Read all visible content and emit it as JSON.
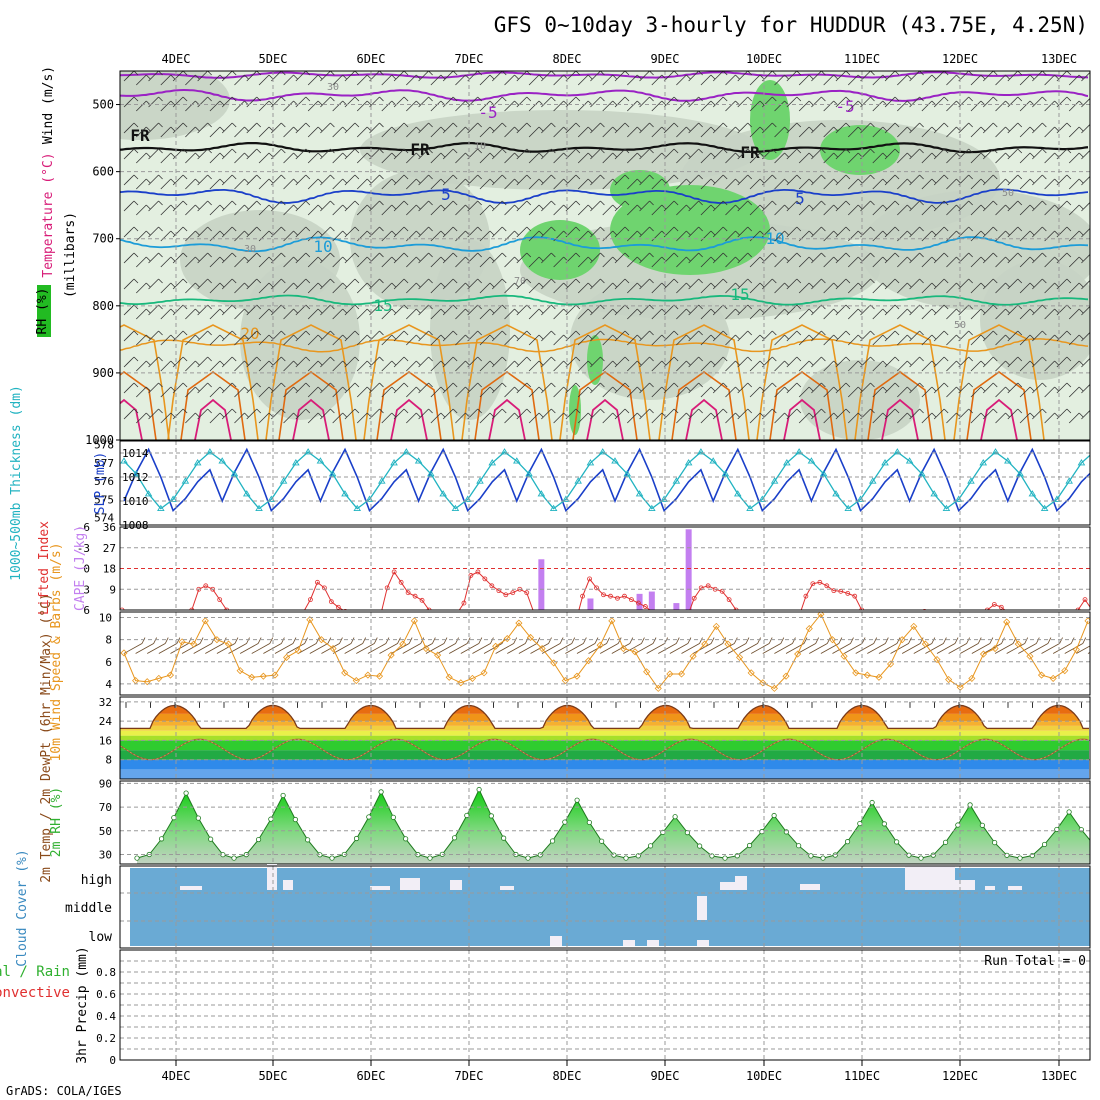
{
  "title": "GFS 0~10day 3-hourly for HUDDUR (43.75E, 4.25N)",
  "footer": "GrADS: COLA/IGES",
  "colors": {
    "rh_light": "#e3efe0",
    "rh_mid": "#c7d3c4",
    "rh_dark": "#6fd46f",
    "t_m5": "#9a22c4",
    "t_fr": "#111111",
    "t_5": "#1a3fc9",
    "t_10": "#1c9cd8",
    "t_15": "#18b87c",
    "t_20": "#e8961e",
    "t_25": "#e06a10",
    "t_30": "#d81c78",
    "slp": "#1a3fc9",
    "thickness": "#21b3c1",
    "lifted": "#e03030",
    "cape": "#c37ff0",
    "wind": "#e8961e",
    "cloud_bg": "#6aaad4",
    "cloud_fill": "#f2eef6",
    "rh2m": "#30b030"
  },
  "chart_data": [
    {
      "type": "heatmap",
      "name": "upper-air",
      "ylabel_parts": [
        "RH (%)",
        "Temperature (°C)",
        "Wind (m/s)"
      ],
      "yaxis_title": "(millibars)",
      "x": [
        "4DEC",
        "5DEC",
        "6DEC",
        "7DEC",
        "8DEC",
        "9DEC",
        "10DEC",
        "11DEC",
        "12DEC",
        "13DEC"
      ],
      "yticks": [
        500,
        600,
        700,
        800,
        900,
        1000
      ],
      "ylim": [
        1000,
        450
      ],
      "contour_labels": [
        {
          "text": "-5",
          "color": "t_m5"
        },
        {
          "text": "-5",
          "color": "t_m5"
        },
        {
          "text": "FR",
          "color": "t_fr"
        },
        {
          "text": "FR",
          "color": "t_fr"
        },
        {
          "text": "FR",
          "color": "t_fr"
        },
        {
          "text": "5",
          "color": "t_5"
        },
        {
          "text": "5",
          "color": "t_5"
        },
        {
          "text": "10",
          "color": "t_10"
        },
        {
          "text": "10",
          "color": "t_10"
        },
        {
          "text": "15",
          "color": "t_15"
        },
        {
          "text": "15",
          "color": "t_15"
        },
        {
          "text": "20",
          "color": "t_20"
        },
        {
          "text": "30",
          "color": "rh"
        },
        {
          "text": "30",
          "color": "rh"
        },
        {
          "text": "50",
          "color": "rh"
        },
        {
          "text": "50",
          "color": "rh"
        },
        {
          "text": "70",
          "color": "rh"
        },
        {
          "text": "10",
          "color": "rh"
        }
      ]
    },
    {
      "type": "line",
      "name": "slp-thickness",
      "ylabel_left": "1000~500mb Thickness (dm)",
      "ylabel_right": "SLP (mb)",
      "left_ticks": [
        574,
        575,
        576,
        577,
        578
      ],
      "right_ticks": [
        1008,
        1010,
        1012,
        1014
      ],
      "series": [
        {
          "name": "SLP",
          "axis": "right",
          "pattern": [
            1010.0,
            1012.4,
            1014.3,
            1012.0,
            1009.2,
            1010.2,
            1011.6,
            1012.6
          ]
        },
        {
          "name": "Thickness",
          "axis": "left",
          "pattern": [
            577.1,
            576.4,
            575.3,
            574.5,
            575.0,
            576.0,
            577.0,
            577.6
          ]
        }
      ]
    },
    {
      "type": "bar",
      "name": "lifted-cape",
      "ylabel_left": "Lifted Index",
      "ylabel_right": "CAPE (J/kg)",
      "left_ticks": [
        "-6",
        "-3",
        "0",
        "3",
        "6"
      ],
      "right_ticks": [
        9,
        18,
        27,
        36
      ],
      "cape_bars": [
        [
          34,
          22
        ],
        [
          38,
          5
        ],
        [
          42,
          7
        ],
        [
          43,
          8
        ],
        [
          45,
          3
        ],
        [
          46,
          35
        ]
      ],
      "lifted_series": [
        6.0,
        6.5,
        7.2,
        6.8,
        6.3,
        6.8,
        7.3,
        8.2,
        8.2,
        7.0,
        6.0,
        3.0,
        2.5,
        3.0,
        4.5,
        6.0,
        7.0,
        6.8,
        6.3,
        6.5,
        7.0,
        7.5,
        7.7,
        8.0,
        8.2,
        7.6,
        6.3,
        4.5,
        2.0,
        2.8,
        4.8,
        5.6,
        6.2,
        6.5,
        6.8,
        7.3,
        8.2,
        7.0,
        2.8,
        0.5,
        2.0,
        3.5,
        4.0,
        4.6,
        6.0,
        6.3,
        6.6,
        7.7,
        6.5,
        5.0,
        1.0,
        0.5,
        1.5,
        2.5,
        3.2,
        3.8,
        3.5,
        3.0,
        3.5,
        6.3,
        6.8,
        7.4,
        7.5,
        7.8,
        8.4,
        7.8,
        4.0,
        1.5,
        2.8,
        3.8,
        4.0,
        4.3,
        4.0,
        4.5,
        5.0,
        5.5,
        6.3,
        6.8,
        7.5,
        8.0,
        8.3,
        7.0,
        4.3,
        2.8,
        2.5,
        3.0,
        3.3,
        4.5,
        6.0,
        7.0,
        7.5,
        8.0,
        7.0,
        6.5,
        7.0,
        8.5,
        8.2,
        7.0,
        4.0,
        2.2,
        2.0,
        2.5,
        3.2,
        3.3,
        3.6,
        4.0,
        6.0,
        7.5,
        8.2,
        7.0,
        6.5,
        7.8,
        8.4,
        8.0,
        7.2,
        6.2,
        6.5,
        7.0,
        8.0,
        8.2,
        7.5,
        8.0,
        8.2,
        7.0,
        6.0,
        5.2,
        5.6,
        6.4,
        7.0,
        7.8,
        8.0,
        8.2,
        7.8,
        7.6,
        8.2,
        8.4,
        7.5,
        6.0,
        4.5,
        6.0
      ]
    },
    {
      "type": "line",
      "name": "wind10m",
      "ylabel": "10m Wind Speed & Barbs (m/s)",
      "yticks": [
        4,
        6,
        8,
        10
      ],
      "ylim": [
        3,
        10.5
      ],
      "series": [
        {
          "name": "speed",
          "values": [
            6.8,
            4.3,
            4.2,
            4.5,
            4.8,
            7.8,
            7.6,
            9.7,
            8.0,
            7.6,
            5.2,
            4.6,
            4.7,
            4.8,
            6.4,
            7.0,
            9.8,
            8.0,
            7.2,
            5.0,
            4.3,
            4.8,
            4.7,
            6.6,
            7.6,
            9.7,
            7.2,
            6.6,
            4.6,
            4.1,
            4.5,
            5.0,
            7.4,
            8.1,
            9.5,
            8.2,
            7.2,
            5.9,
            4.3,
            4.7,
            6.1,
            7.5,
            9.7,
            7.2,
            6.9,
            5.1,
            3.6,
            4.9,
            4.9,
            6.5,
            7.6,
            9.2,
            7.6,
            6.4,
            5.0,
            4.1,
            3.6,
            4.7,
            6.7,
            9.0,
            10.3,
            8.0,
            6.5,
            5.0,
            4.8,
            4.6,
            5.8,
            8.0,
            9.2,
            7.6,
            6.2,
            4.4,
            3.7,
            4.5,
            6.7,
            7.2,
            9.6,
            7.6,
            6.5,
            4.8,
            4.5,
            5.2,
            7.1,
            9.7
          ]
        }
      ]
    },
    {
      "type": "area",
      "name": "temp2m",
      "ylabel": "2m Temp / 2m DewPt (6hr Min/Max) (°C)",
      "yticks": [
        8,
        16,
        24,
        32
      ],
      "ylim": [
        0,
        34
      ],
      "series": [
        {
          "name": "temperature",
          "min": 21.0,
          "max": 30.5
        },
        {
          "name": "dewpoint",
          "min": 8.0,
          "max": 16.5
        }
      ]
    },
    {
      "type": "area",
      "name": "rh2m",
      "ylabel": "2m RH (%)",
      "yticks": [
        30,
        50,
        70,
        90
      ],
      "ylim": [
        22,
        92
      ],
      "series": [
        {
          "name": "rh",
          "peaks": [
            82,
            80,
            83,
            85,
            76,
            62,
            63,
            74,
            72,
            66
          ],
          "base": 27
        }
      ]
    },
    {
      "type": "bar",
      "name": "cloud",
      "ylabel": "Cloud Cover (%)",
      "levels": [
        "high",
        "middle",
        "low"
      ]
    },
    {
      "type": "bar",
      "name": "precip",
      "ylabel": "3hr Precip (mm)",
      "legend": [
        "Total / Rain",
        "Convective"
      ],
      "note": "Run Total = 0",
      "yticks": [
        0,
        0.2,
        0.4,
        0.6,
        0.8
      ],
      "ylim": [
        0,
        1
      ]
    }
  ]
}
